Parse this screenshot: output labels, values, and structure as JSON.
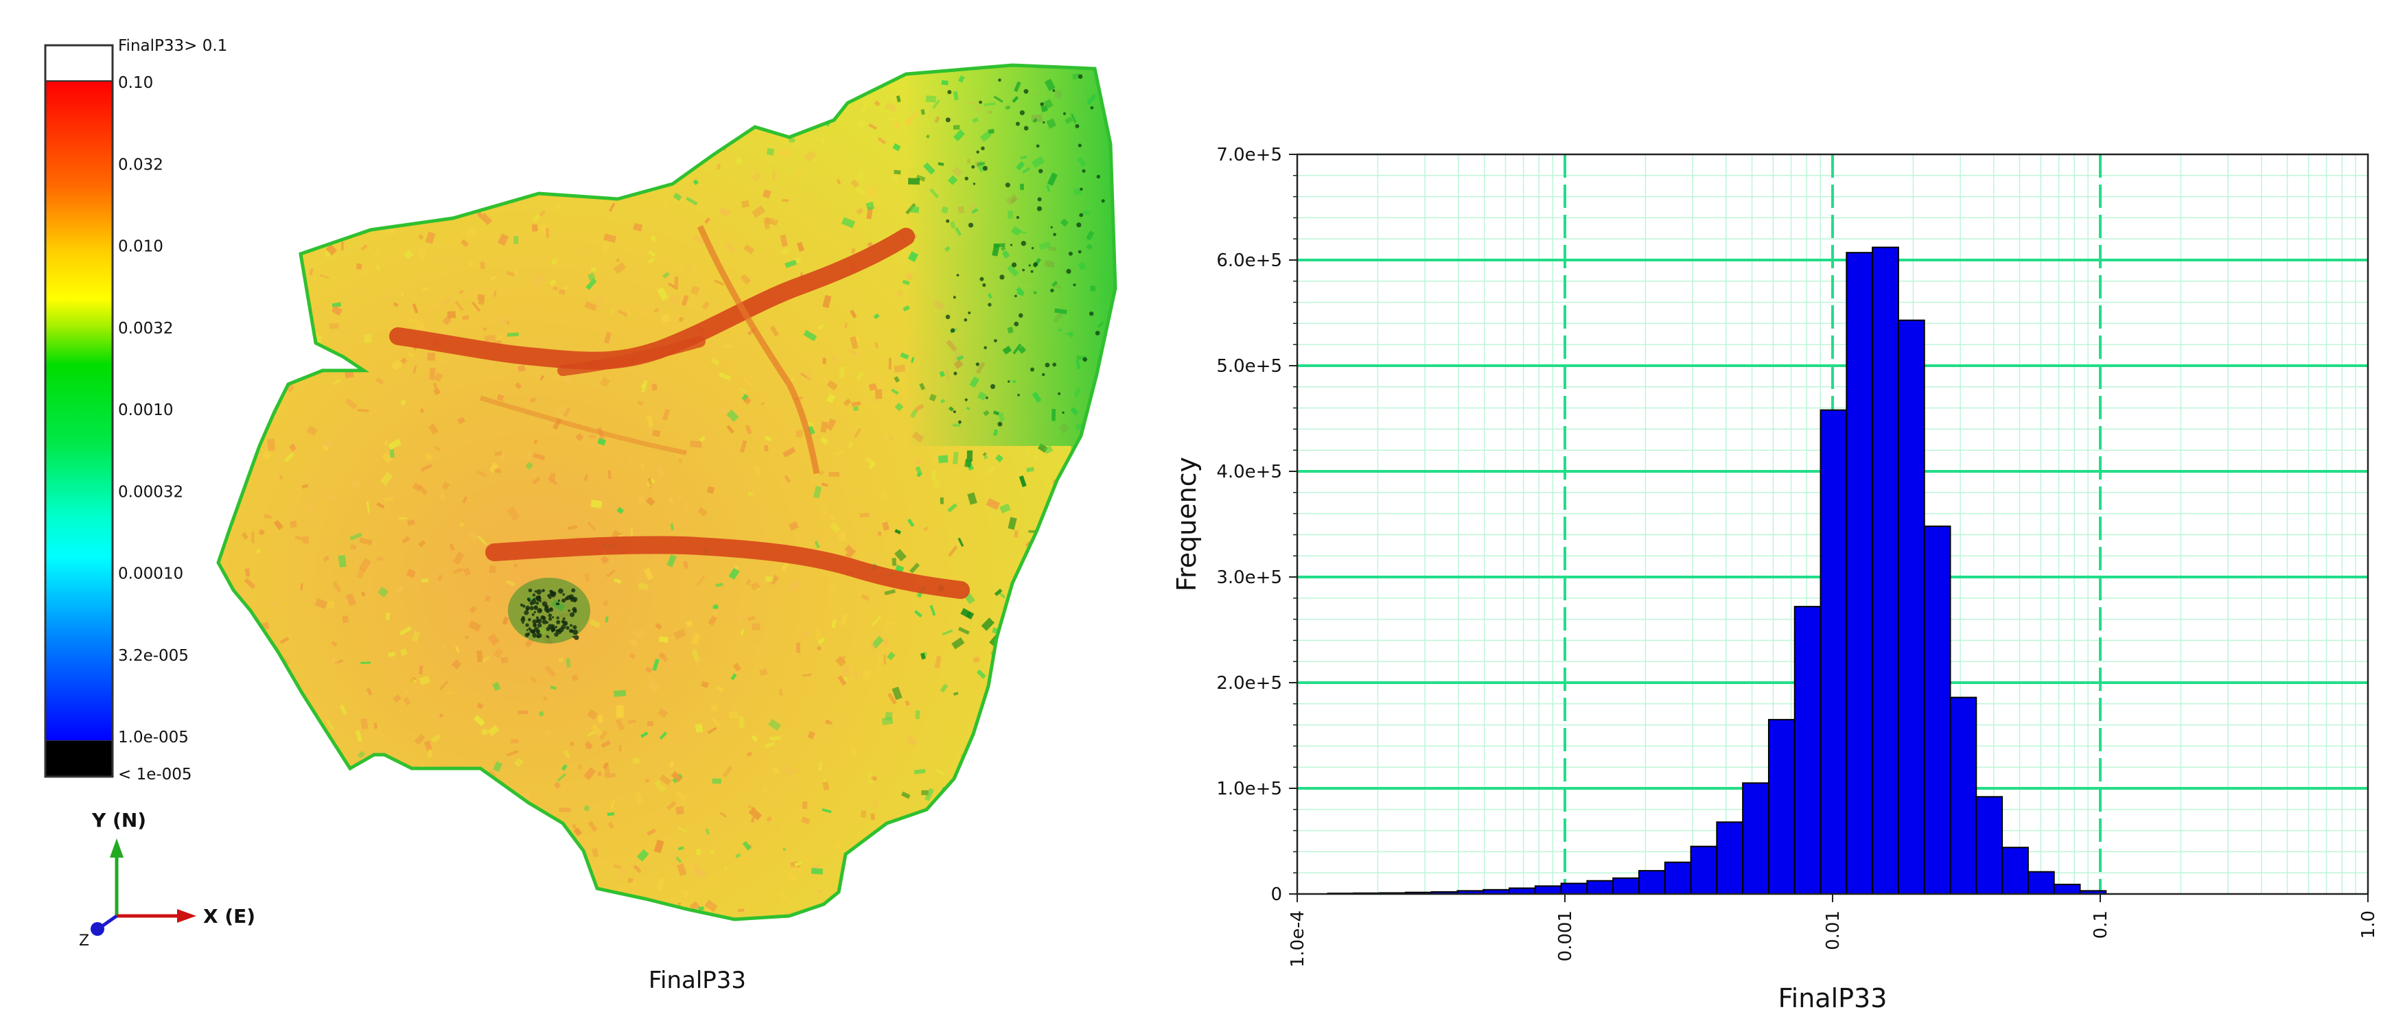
{
  "contour_panel": {
    "caption": "FinalP33",
    "legend": {
      "title": "FinalP33> 0.1",
      "labels": [
        "0.10",
        "0.032",
        "0.010",
        "0.0032",
        "0.0010",
        "0.00032",
        "0.00010",
        "3.2e-005",
        "1.0e-005",
        "< 1e-005"
      ],
      "colors": {
        "above": "#ffffff",
        "ramp_top": "#ff0000",
        "orange": "#ff8c00",
        "yellow": "#ffff00",
        "green": "#00dd00",
        "cyan": "#00ffff",
        "blue": "#0000ff",
        "below": "#000000"
      }
    },
    "axes_triad": {
      "y_label": "Y (N)",
      "x_label": "X (E)",
      "z_label": "Z",
      "colors": {
        "y": "#22aa22",
        "x": "#cc1111",
        "z": "#1a1acc"
      }
    },
    "map_colors": {
      "base_yellow": "#eedc2a",
      "orange": "#f0a040",
      "green": "#4cd64c",
      "dark_green": "#128b1a",
      "trace": "#d84a18"
    }
  },
  "chart_data": {
    "type": "bar",
    "subtype": "histogram",
    "xlabel": "FinalP33",
    "ylabel": "Frequency",
    "x_scale": "log",
    "xlim": [
      0.0001,
      1.0
    ],
    "ylim": [
      0,
      700000
    ],
    "x_tick_labels": [
      "1.0e-4",
      "0.001",
      "0.01",
      "0.1",
      "1.0"
    ],
    "y_tick_labels": [
      "0",
      "1.0e+5",
      "2.0e+5",
      "3.0e+5",
      "4.0e+5",
      "5.0e+5",
      "6.0e+5",
      "7.0e+5"
    ],
    "grid": true,
    "bin_edges": [
      0.00013,
      0.0001625,
      0.00020312,
      0.00025391,
      0.00031738,
      0.00039673,
      0.00049591,
      0.00061989,
      0.00077486,
      0.00096858,
      0.0012107,
      0.0015134,
      0.0018917,
      0.0023647,
      0.0029559,
      0.0036948,
      0.0046185,
      0.0057732,
      0.0072165,
      0.0090206,
      0.011276,
      0.014094,
      0.017618,
      0.022022,
      0.027528,
      0.03441,
      0.043012,
      0.053766,
      0.067207,
      0.084009,
      0.10501
    ],
    "values": [
      600,
      800,
      1000,
      1500,
      2000,
      3000,
      4000,
      5500,
      7500,
      10000,
      12500,
      15000,
      22000,
      30000,
      45000,
      68000,
      105000,
      165000,
      272000,
      458000,
      607000,
      612000,
      543000,
      348000,
      186000,
      92000,
      44000,
      21000,
      9000,
      3000
    ],
    "colors": {
      "bar": "#0000ee",
      "bar_edge": "#000000",
      "grid_major": "#22dd88",
      "grid_minor": "#bdf5d8",
      "axis": "#222222"
    }
  }
}
